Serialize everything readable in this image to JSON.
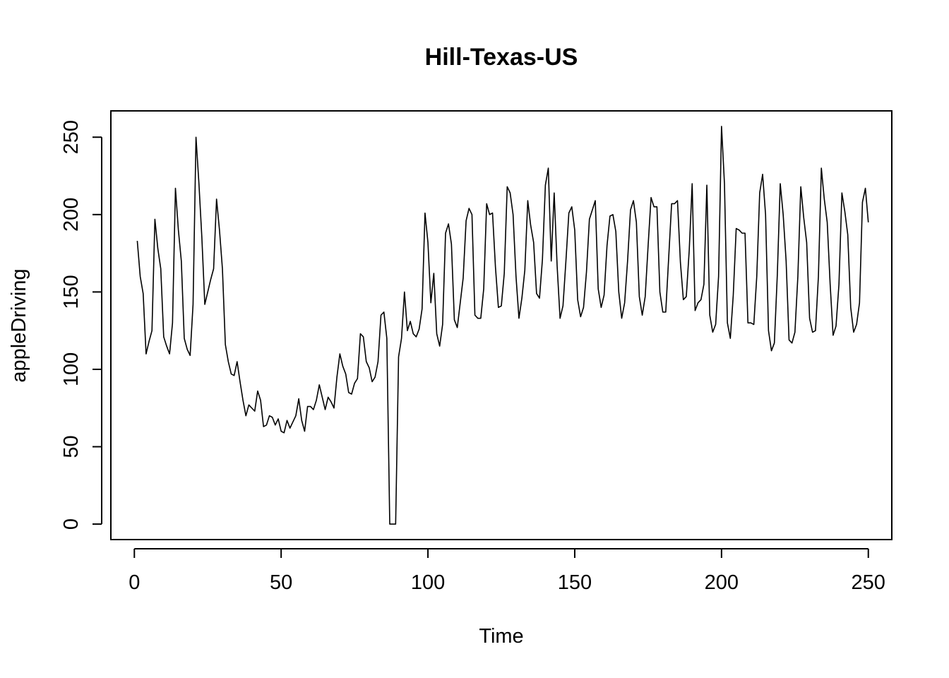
{
  "chart_data": {
    "type": "line",
    "title": "Hill-Texas-US",
    "xlabel": "Time",
    "ylabel": "appleDriving",
    "xlim": [
      -8,
      258
    ],
    "ylim": [
      -10,
      267
    ],
    "xticks": [
      0,
      50,
      100,
      150,
      200,
      250
    ],
    "yticks": [
      0,
      50,
      100,
      150,
      200,
      250
    ],
    "grid": false,
    "line_color": "#000000",
    "series": [
      {
        "x_start": 1,
        "values": [
          183,
          160,
          149,
          110,
          118,
          125,
          197,
          178,
          165,
          121,
          115,
          110,
          130,
          217,
          190,
          170,
          120,
          113,
          109,
          142,
          250,
          220,
          185,
          142,
          150,
          158,
          165,
          210,
          190,
          165,
          116,
          105,
          97,
          96,
          105,
          92,
          80,
          70,
          77,
          75,
          73,
          86,
          80,
          63,
          64,
          70,
          69,
          64,
          68,
          60,
          59,
          67,
          62,
          66,
          70,
          81,
          67,
          60,
          76,
          76,
          74,
          80,
          90,
          82,
          74,
          82,
          79,
          75,
          95,
          110,
          102,
          97,
          85,
          84,
          91,
          94,
          123,
          121,
          105,
          101,
          92,
          95,
          105,
          135,
          137,
          120,
          0,
          0,
          0,
          108,
          120,
          150,
          125,
          131,
          123,
          121,
          126,
          139,
          201,
          182,
          143,
          162,
          123,
          115,
          129,
          188,
          194,
          181,
          132,
          127,
          143,
          159,
          196,
          204,
          200,
          135,
          133,
          133,
          152,
          207,
          200,
          201,
          166,
          140,
          141,
          162,
          218,
          214,
          200,
          160,
          133,
          146,
          164,
          209,
          193,
          182,
          149,
          146,
          171,
          219,
          230,
          170,
          214,
          167,
          133,
          141,
          170,
          201,
          205,
          190,
          145,
          134,
          140,
          163,
          197,
          203,
          209,
          152,
          140,
          148,
          180,
          199,
          200,
          189,
          150,
          133,
          143,
          170,
          203,
          209,
          195,
          147,
          135,
          147,
          180,
          211,
          205,
          205,
          150,
          137,
          137,
          172,
          207,
          207,
          209,
          169,
          145,
          147,
          177,
          220,
          138,
          143,
          145,
          155,
          219,
          135,
          124,
          129,
          160,
          257,
          220,
          130,
          120,
          148,
          191,
          190,
          188,
          188,
          130,
          130,
          129,
          160,
          214,
          226,
          200,
          125,
          112,
          117,
          161,
          220,
          200,
          170,
          119,
          117,
          124,
          160,
          218,
          198,
          182,
          133,
          124,
          125,
          160,
          230,
          210,
          195,
          155,
          122,
          128,
          155,
          214,
          202,
          187,
          140,
          124,
          129,
          143,
          208,
          217,
          195
        ]
      }
    ]
  }
}
